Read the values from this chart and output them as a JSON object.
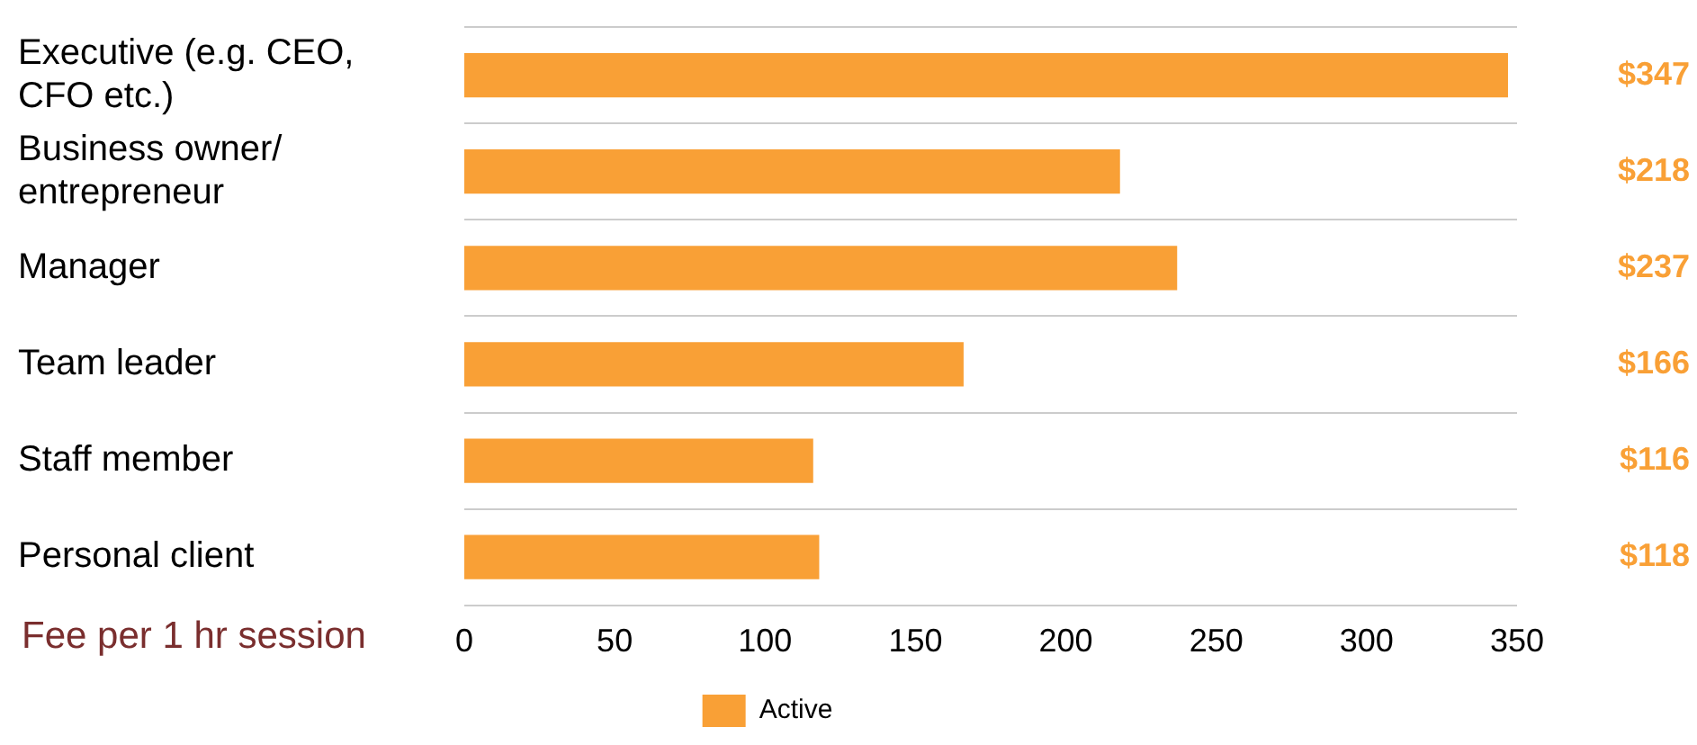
{
  "chart_data": {
    "type": "bar",
    "orientation": "horizontal",
    "xlabel": "Fee per 1 hr session",
    "categories": [
      "Executive (e.g. CEO, CFO etc.)",
      "Business owner/ entrepreneur",
      "Manager",
      "Team leader",
      "Staff member",
      "Personal client"
    ],
    "series": [
      {
        "name": "Active",
        "color": "#f9a036",
        "values": [
          347,
          218,
          237,
          166,
          116,
          118
        ],
        "value_labels": [
          "$347",
          "$218",
          "$237",
          "$166",
          "$116",
          "$118"
        ]
      }
    ],
    "xlim": [
      0,
      350
    ],
    "xticks": [
      0,
      50,
      100,
      150,
      200,
      250,
      300,
      350
    ],
    "grid": "y",
    "legend": "bottom"
  }
}
